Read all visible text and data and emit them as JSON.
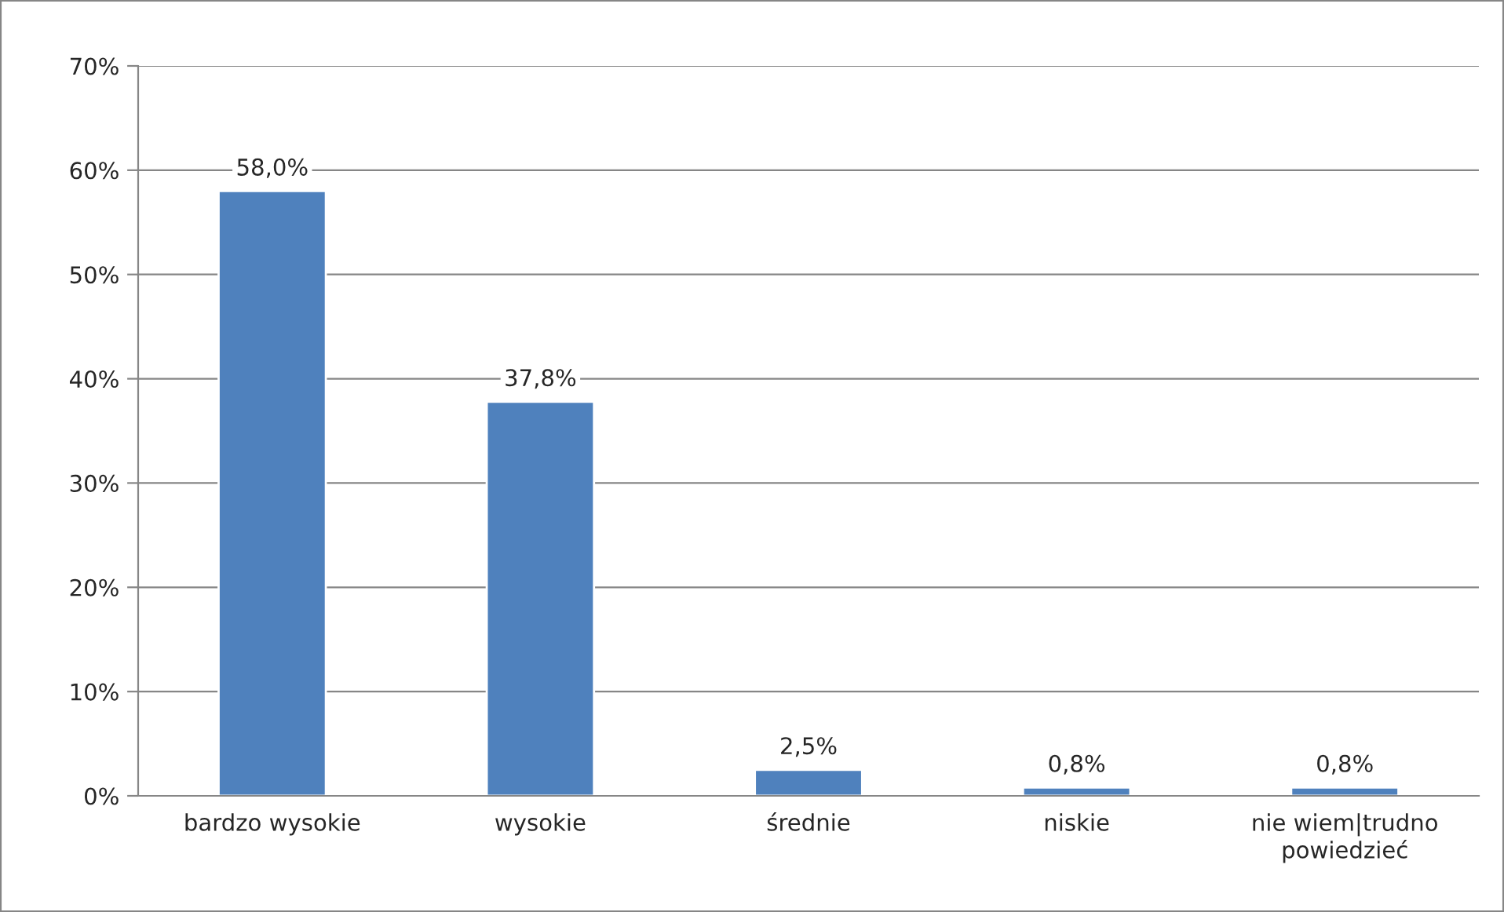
{
  "chart_data": {
    "type": "bar",
    "categories": [
      "bardzo wysokie",
      "wysokie",
      "średnie",
      "niskie",
      "nie wiem|trudno\npowiedzieć"
    ],
    "values": [
      58.0,
      37.8,
      2.5,
      0.8,
      0.8
    ],
    "value_labels": [
      "58,0%",
      "37,8%",
      "2,5%",
      "0,8%",
      "0,8%"
    ],
    "color": "#4f81bd",
    "ylim": [
      0,
      70
    ],
    "yticks": [
      {
        "value": 0,
        "label": "0%"
      },
      {
        "value": 10,
        "label": "10%"
      },
      {
        "value": 20,
        "label": "20%"
      },
      {
        "value": 30,
        "label": "30%"
      },
      {
        "value": 40,
        "label": "40%"
      },
      {
        "value": 50,
        "label": "50%"
      },
      {
        "value": 60,
        "label": "60%"
      },
      {
        "value": 70,
        "label": "70%"
      }
    ],
    "grid": "y"
  }
}
